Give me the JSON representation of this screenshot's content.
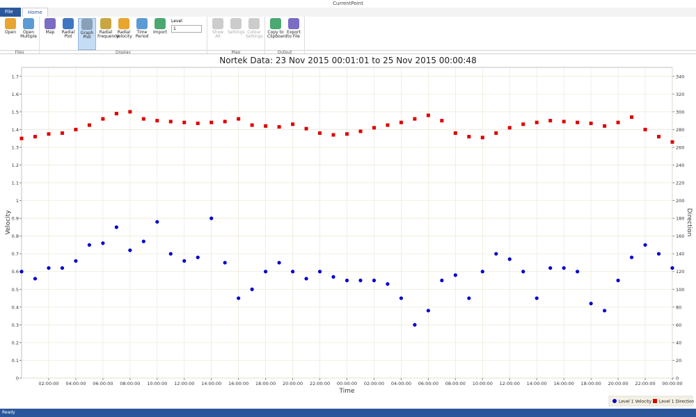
{
  "window": {
    "title": "CurrentPoint"
  },
  "ribbon": {
    "tabs": [
      "File",
      "Home"
    ],
    "groups": [
      {
        "label": "Files",
        "buttons": [
          "Open",
          "Open Multiple"
        ]
      },
      {
        "label": "Display",
        "buttons": [
          "Map",
          "Radial Plot",
          "Graph Plot",
          "Radial Frequency",
          "Radial Velocity",
          "Time Period",
          "Import"
        ]
      },
      {
        "label": "Map",
        "buttons": [
          "Show All",
          "Settings",
          "Colour Settings"
        ]
      },
      {
        "label": "Output",
        "buttons": [
          "Copy to Clipboard",
          "Export to File"
        ]
      }
    ],
    "level_label": "Level",
    "level_value": "1"
  },
  "status": "Ready",
  "chart_data": {
    "type": "scatter",
    "title": "Nortek Data: 23 Nov 2015 00:01:01 to 25 Nov 2015 00:00:48",
    "x_label": "Time",
    "y_label": "Velocity",
    "y2_label": "Direction",
    "x": [
      0,
      1,
      2,
      3,
      4,
      5,
      6,
      7,
      8,
      9,
      10,
      11,
      12,
      13,
      14,
      15,
      16,
      17,
      18,
      19,
      20,
      21,
      22,
      23,
      24,
      25,
      26,
      27,
      28,
      29,
      30,
      31,
      32,
      33,
      34,
      35,
      36,
      37,
      38,
      39,
      40,
      41,
      42,
      43,
      44,
      45,
      46,
      47,
      48
    ],
    "series": [
      {
        "name": "Level 1 Velocity",
        "color": "#0000cc",
        "marker": "circle",
        "values": [
          0.6,
          0.56,
          0.62,
          0.62,
          0.66,
          0.75,
          0.76,
          0.85,
          0.72,
          0.77,
          0.88,
          0.7,
          0.66,
          0.68,
          0.9,
          0.65,
          0.45,
          0.5,
          0.6,
          0.65,
          0.6,
          0.56,
          0.6,
          0.57,
          0.55,
          0.55,
          0.55,
          0.53,
          0.45,
          0.3,
          0.38,
          0.55,
          0.58,
          0.45,
          0.6,
          0.7,
          0.67,
          0.6,
          0.45,
          0.62,
          0.62,
          0.6,
          0.42,
          0.38,
          0.55,
          0.68,
          0.75,
          0.7,
          0.62
        ]
      },
      {
        "name": "Level 1 Direction",
        "color": "#dd0000",
        "marker": "square",
        "axis": "y2",
        "values": [
          270,
          272,
          275,
          276,
          280,
          285,
          292,
          298,
          300,
          292,
          290,
          289,
          288,
          287,
          288,
          289,
          292,
          285,
          284,
          283,
          286,
          281,
          276,
          274,
          275,
          278,
          282,
          285,
          288,
          292,
          296,
          290,
          276,
          272,
          271,
          276,
          282,
          286,
          288,
          290,
          289,
          288,
          287,
          284,
          288,
          294,
          280,
          272,
          266
        ]
      }
    ],
    "xlim": [
      0,
      48
    ],
    "xticks": [
      {
        "value": 2,
        "label": "02:00:00"
      },
      {
        "value": 4,
        "label": "04:00:00"
      },
      {
        "value": 6,
        "label": "06:00:00"
      },
      {
        "value": 8,
        "label": "08:00:00"
      },
      {
        "value": 10,
        "label": "10:00:00"
      },
      {
        "value": 12,
        "label": "12:00:00"
      },
      {
        "value": 14,
        "label": "14:00:00"
      },
      {
        "value": 16,
        "label": "16:00:00"
      },
      {
        "value": 18,
        "label": "18:00:00"
      },
      {
        "value": 20,
        "label": "20:00:00"
      },
      {
        "value": 22,
        "label": "22:00:00"
      },
      {
        "value": 24,
        "label": "00:00:00"
      },
      {
        "value": 26,
        "label": "02:00:00"
      },
      {
        "value": 28,
        "label": "04:00:00"
      },
      {
        "value": 30,
        "label": "06:00:00"
      },
      {
        "value": 32,
        "label": "08:00:00"
      },
      {
        "value": 34,
        "label": "10:00:00"
      },
      {
        "value": 36,
        "label": "12:00:00"
      },
      {
        "value": 38,
        "label": "14:00:00"
      },
      {
        "value": 40,
        "label": "16:00:00"
      },
      {
        "value": 42,
        "label": "18:00:00"
      },
      {
        "value": 44,
        "label": "20:00:00"
      },
      {
        "value": 46,
        "label": "22:00:00"
      },
      {
        "value": 48,
        "label": "00:00:00"
      }
    ],
    "ylim": [
      0,
      1.75
    ],
    "yticks": [
      0,
      0.1,
      0.2,
      0.3,
      0.4,
      0.5,
      0.6,
      0.7,
      0.8,
      0.9,
      1,
      1.1,
      1.2,
      1.3,
      1.4,
      1.5,
      1.6,
      1.7
    ],
    "y2lim": [
      0,
      350
    ],
    "y2ticks": [
      0,
      20,
      40,
      60,
      80,
      100,
      120,
      140,
      160,
      180,
      200,
      220,
      240,
      260,
      280,
      300,
      320,
      340
    ],
    "grid": true,
    "legend": "bottom-right"
  }
}
